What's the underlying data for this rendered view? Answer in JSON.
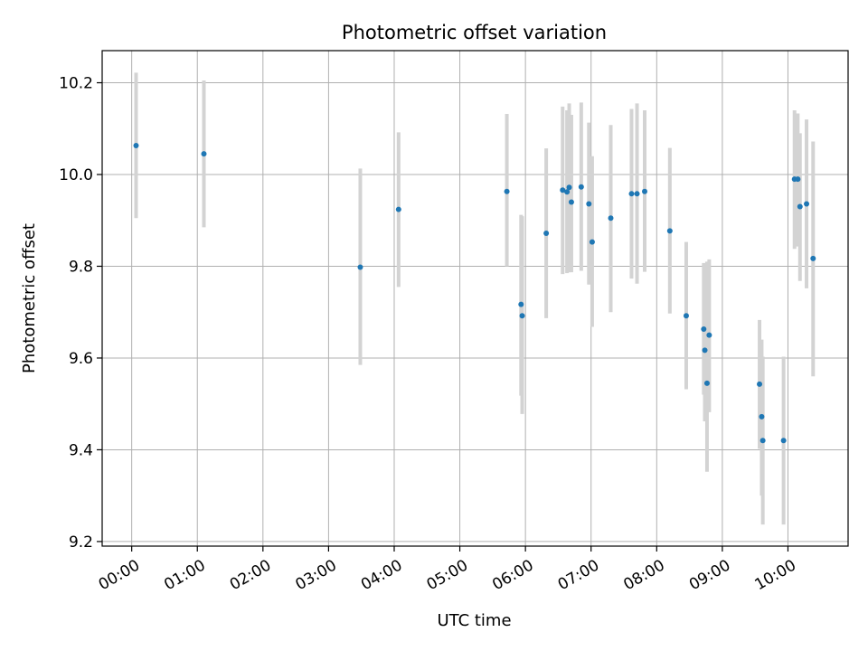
{
  "chart_data": {
    "type": "scatter",
    "title": "Photometric offset variation",
    "xlabel": "UTC time",
    "ylabel": "Photometric offset",
    "x_ticks": [
      "00:00",
      "01:00",
      "02:00",
      "03:00",
      "04:00",
      "05:00",
      "06:00",
      "07:00",
      "08:00",
      "09:00",
      "10:00"
    ],
    "y_ticks": [
      "9.2",
      "9.4",
      "9.6",
      "9.8",
      "10.0",
      "10.2"
    ],
    "xlim": [
      "-00:27",
      "10:55"
    ],
    "ylim": [
      9.19,
      10.27
    ],
    "grid": true,
    "colors": {
      "points": "#1f77b4",
      "errorbars": "#d3d3d3",
      "grid": "#b0b0b0"
    },
    "points": [
      {
        "x": "00:04",
        "y": 10.063,
        "low": 9.905,
        "high": 10.222
      },
      {
        "x": "01:06",
        "y": 10.045,
        "low": 9.885,
        "high": 10.205
      },
      {
        "x": "03:29",
        "y": 9.798,
        "low": 9.585,
        "high": 10.013
      },
      {
        "x": "04:04",
        "y": 9.924,
        "low": 9.755,
        "high": 10.092
      },
      {
        "x": "05:43",
        "y": 9.963,
        "low": 9.8,
        "high": 10.132
      },
      {
        "x": "05:56",
        "y": 9.717,
        "low": 9.518,
        "high": 9.912
      },
      {
        "x": "05:57",
        "y": 9.692,
        "low": 9.478,
        "high": 9.909
      },
      {
        "x": "06:19",
        "y": 9.872,
        "low": 9.687,
        "high": 10.057
      },
      {
        "x": "06:34",
        "y": 9.966,
        "low": 9.783,
        "high": 10.148
      },
      {
        "x": "06:38",
        "y": 9.962,
        "low": 9.785,
        "high": 10.14
      },
      {
        "x": "06:40",
        "y": 9.972,
        "low": 9.787,
        "high": 10.155
      },
      {
        "x": "06:42",
        "y": 9.94,
        "low": 9.787,
        "high": 10.13
      },
      {
        "x": "06:51",
        "y": 9.973,
        "low": 9.79,
        "high": 10.157
      },
      {
        "x": "06:58",
        "y": 9.936,
        "low": 9.76,
        "high": 10.113
      },
      {
        "x": "07:01",
        "y": 9.853,
        "low": 9.668,
        "high": 10.04
      },
      {
        "x": "07:18",
        "y": 9.905,
        "low": 9.7,
        "high": 10.108
      },
      {
        "x": "07:37",
        "y": 9.958,
        "low": 9.773,
        "high": 10.143
      },
      {
        "x": "07:42",
        "y": 9.958,
        "low": 9.762,
        "high": 10.155
      },
      {
        "x": "07:49",
        "y": 9.963,
        "low": 9.788,
        "high": 10.14
      },
      {
        "x": "08:12",
        "y": 9.877,
        "low": 9.697,
        "high": 10.058
      },
      {
        "x": "08:27",
        "y": 9.692,
        "low": 9.532,
        "high": 9.853
      },
      {
        "x": "08:43",
        "y": 9.663,
        "low": 9.52,
        "high": 9.807
      },
      {
        "x": "08:44",
        "y": 9.617,
        "low": 9.462,
        "high": 9.772
      },
      {
        "x": "08:46",
        "y": 9.545,
        "low": 9.352,
        "high": 9.81
      },
      {
        "x": "08:48",
        "y": 9.65,
        "low": 9.482,
        "high": 9.815
      },
      {
        "x": "09:34",
        "y": 9.543,
        "low": 9.402,
        "high": 9.683
      },
      {
        "x": "09:36",
        "y": 9.472,
        "low": 9.3,
        "high": 9.64
      },
      {
        "x": "09:37",
        "y": 9.42,
        "low": 9.237,
        "high": 9.603
      },
      {
        "x": "09:56",
        "y": 9.42,
        "low": 9.237,
        "high": 9.603
      },
      {
        "x": "10:06",
        "y": 9.99,
        "low": 9.838,
        "high": 10.14
      },
      {
        "x": "10:09",
        "y": 9.99,
        "low": 9.843,
        "high": 10.133
      },
      {
        "x": "10:11",
        "y": 9.93,
        "low": 9.768,
        "high": 10.09
      },
      {
        "x": "10:17",
        "y": 9.936,
        "low": 9.752,
        "high": 10.12
      },
      {
        "x": "10:23",
        "y": 9.817,
        "low": 9.56,
        "high": 10.072
      }
    ]
  }
}
